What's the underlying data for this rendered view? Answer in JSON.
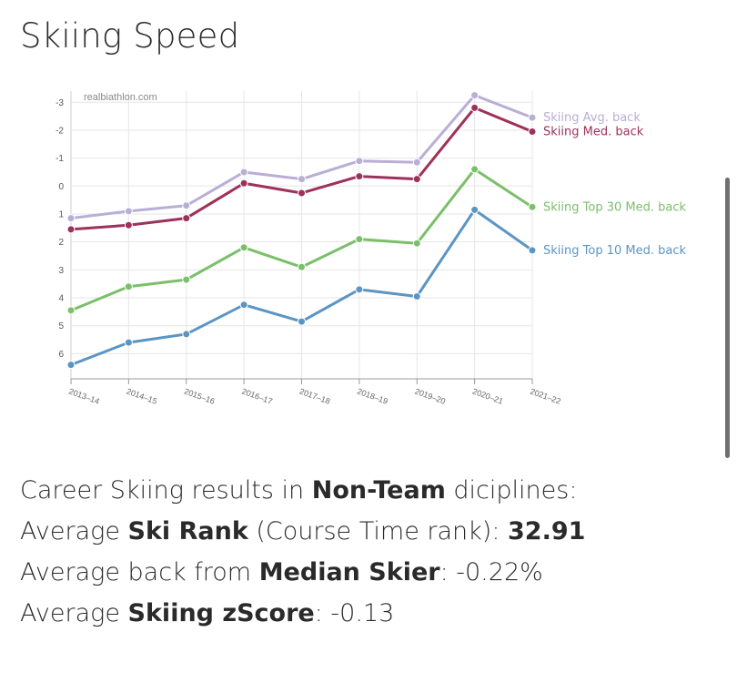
{
  "title": "Skiing Speed",
  "watermark": "realbiathlon.com",
  "chart_data": {
    "type": "line",
    "x": [
      "2013–14",
      "2014–15",
      "2015–16",
      "2016–17",
      "2017–18",
      "2018–19",
      "2019–20",
      "2020–21",
      "2021–22"
    ],
    "y_axis": {
      "reversed": true,
      "range": [
        6.9,
        -3.4
      ],
      "ticks": [
        -3,
        -2,
        -1,
        0,
        1,
        2,
        3,
        4,
        5,
        6
      ]
    },
    "grid": true,
    "legend": "end-of-line labels on right",
    "series": [
      {
        "name": "Skiing Avg. back",
        "color": "#b9aed6",
        "values": [
          1.15,
          0.9,
          0.7,
          -0.5,
          -0.25,
          -0.9,
          -0.85,
          -3.25,
          -2.45
        ]
      },
      {
        "name": "Skiing Med. back",
        "color": "#9e3159",
        "values": [
          1.55,
          1.4,
          1.15,
          -0.1,
          0.25,
          -0.35,
          -0.25,
          -2.8,
          -1.95
        ]
      },
      {
        "name": "Skiing Top 30 Med. back",
        "color": "#7abf6a",
        "values": [
          4.45,
          3.6,
          3.35,
          2.2,
          2.9,
          1.9,
          2.05,
          -0.6,
          0.75
        ]
      },
      {
        "name": "Skiing Top 10 Med. back",
        "color": "#5b95c4",
        "values": [
          6.4,
          5.6,
          5.3,
          4.25,
          4.85,
          3.7,
          3.95,
          0.85,
          2.3
        ]
      }
    ]
  },
  "stats": {
    "line1": {
      "pre": "Career Skiing results in ",
      "bold": "Non-Team",
      "post": " diciplines:"
    },
    "line2": {
      "pre": "Average ",
      "bold": "Ski Rank",
      "mid": " (Course Time rank): ",
      "value": "32.91"
    },
    "line3": {
      "pre": "Average back from ",
      "bold": "Median Skier",
      "mid": ": ",
      "value": "-0.22%"
    },
    "line4": {
      "pre": "Average ",
      "bold": "Skiing zScore",
      "mid": ": ",
      "value": "-0.13"
    }
  }
}
